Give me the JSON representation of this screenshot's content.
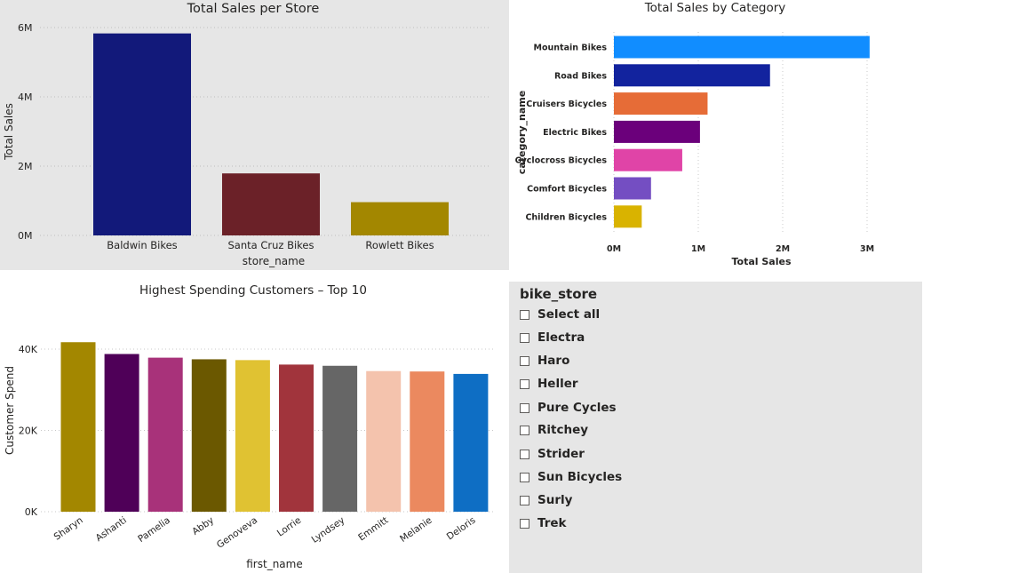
{
  "charts": [
    {
      "type": "bar",
      "title": "Total Sales per Store",
      "xlabel": "store_name",
      "ylabel": "Total Sales",
      "categories": [
        "Baldwin Bikes",
        "Santa Cruz Bikes",
        "Rowlett Bikes"
      ],
      "values": [
        5830000,
        1790000,
        960000
      ],
      "colors": [
        "#12197a",
        "#6b2128",
        "#a38700"
      ],
      "ylim": [
        0,
        6000000
      ],
      "yticks": [
        0,
        2000000,
        4000000,
        6000000
      ],
      "ytick_labels": [
        "0M",
        "2M",
        "4M",
        "6M"
      ],
      "grid": true
    },
    {
      "type": "bar",
      "orientation": "horizontal",
      "title": "Total Sales by Category",
      "xlabel": "Total Sales",
      "ylabel": "category_name",
      "categories": [
        "Mountain Bikes",
        "Road Bikes",
        "Cruisers Bicycles",
        "Electric Bikes",
        "Cyclocross Bicycles",
        "Comfort Bicycles",
        "Children Bicycles"
      ],
      "values": [
        3030000,
        1850000,
        1110000,
        1020000,
        810000,
        440000,
        330000
      ],
      "colors": [
        "#118dff",
        "#12239e",
        "#e66c37",
        "#6b007b",
        "#e044a7",
        "#744ec2",
        "#d9b300"
      ],
      "xlim": [
        0,
        3000000
      ],
      "xticks": [
        0,
        1000000,
        2000000,
        3000000
      ],
      "xtick_labels": [
        "0M",
        "1M",
        "2M",
        "3M"
      ],
      "grid": true
    },
    {
      "type": "bar",
      "title": "Highest Spending Customers – Top 10",
      "xlabel": "first_name",
      "ylabel": "Customer Spend",
      "categories": [
        "Sharyn",
        "Ashanti",
        "Pamelia",
        "Abby",
        "Genoveva",
        "Lorrie",
        "Lyndsey",
        "Emmitt",
        "Melanie",
        "Deloris"
      ],
      "values": [
        41700,
        38800,
        37900,
        37500,
        37300,
        36200,
        35900,
        34600,
        34500,
        33900
      ],
      "colors": [
        "#a38700",
        "#4f0058",
        "#a8327a",
        "#6b5800",
        "#e0c232",
        "#a1343c",
        "#666666",
        "#f4c3ad",
        "#eb895f",
        "#0e6ec4"
      ],
      "ylim": [
        0,
        40000
      ],
      "yticks": [
        0,
        20000,
        40000
      ],
      "ytick_labels": [
        "0K",
        "20K",
        "40K"
      ],
      "grid": true
    }
  ],
  "slicer": {
    "title": "bike_store",
    "items": [
      "Select all",
      "Electra",
      "Haro",
      "Heller",
      "Pure Cycles",
      "Ritchey",
      "Strider",
      "Sun Bicycles",
      "Surly",
      "Trek"
    ]
  }
}
